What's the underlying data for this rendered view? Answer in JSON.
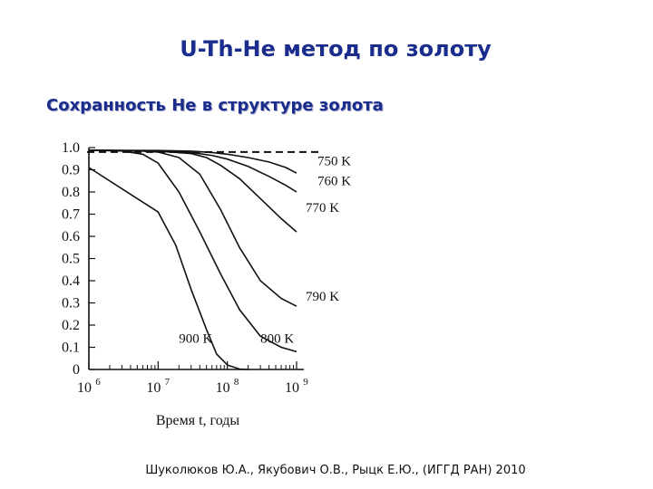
{
  "title": "U-Th-He метод по золоту",
  "subtitle": "Сохранность He в структуре золота",
  "footer": "Шуколюков Ю.А., Якубович О.В., Рыцк Е.Ю., (ИГГД РАН) 2010",
  "chart_data": {
    "type": "line",
    "xlabel": "Время t, годы",
    "ylabel": "",
    "x_scale": "log",
    "xlim": [
      1000000,
      1000000000
    ],
    "ylim": [
      0,
      1.0
    ],
    "x_ticks": [
      {
        "value": 1000000,
        "base": "10",
        "exp": "6"
      },
      {
        "value": 10000000,
        "base": "10",
        "exp": "7"
      },
      {
        "value": 100000000,
        "base": "10",
        "exp": "8"
      },
      {
        "value": 1000000000,
        "base": "10",
        "exp": "9"
      }
    ],
    "y_ticks": [
      "0",
      "0.1",
      "0.2",
      "0.3",
      "0.4",
      "0.5",
      "0.6",
      "0.7",
      "0.8",
      "0.9",
      "1.0"
    ],
    "y_tick_values": [
      0,
      0.1,
      0.2,
      0.3,
      0.4,
      0.5,
      0.6,
      0.7,
      0.8,
      0.9,
      1.0
    ],
    "reference_line": {
      "style": "dashed",
      "y": 0.98
    },
    "series": [
      {
        "name": "750 K",
        "label_at": [
          2000000000,
          0.92
        ],
        "points": [
          [
            1000000,
            0.988
          ],
          [
            10000000,
            0.987
          ],
          [
            30000000,
            0.984
          ],
          [
            60000000,
            0.978
          ],
          [
            100000000,
            0.97
          ],
          [
            200000000,
            0.955
          ],
          [
            400000000,
            0.935
          ],
          [
            700000000,
            0.91
          ],
          [
            1000000000,
            0.885
          ]
        ]
      },
      {
        "name": "760 K",
        "label_at": [
          2000000000,
          0.83
        ],
        "points": [
          [
            1000000,
            0.988
          ],
          [
            10000000,
            0.985
          ],
          [
            30000000,
            0.978
          ],
          [
            60000000,
            0.965
          ],
          [
            100000000,
            0.948
          ],
          [
            200000000,
            0.915
          ],
          [
            400000000,
            0.87
          ],
          [
            700000000,
            0.83
          ],
          [
            1000000000,
            0.8
          ]
        ]
      },
      {
        "name": "770 K",
        "label_at": [
          1350000000,
          0.71
        ],
        "points": [
          [
            1000000,
            0.988
          ],
          [
            10000000,
            0.984
          ],
          [
            30000000,
            0.973
          ],
          [
            50000000,
            0.955
          ],
          [
            80000000,
            0.92
          ],
          [
            150000000,
            0.86
          ],
          [
            300000000,
            0.77
          ],
          [
            600000000,
            0.68
          ],
          [
            1000000000,
            0.62
          ]
        ]
      },
      {
        "name": "790 K",
        "label_at": [
          1350000000,
          0.31
        ],
        "points": [
          [
            1000000,
            0.988
          ],
          [
            5000000,
            0.986
          ],
          [
            10000000,
            0.98
          ],
          [
            20000000,
            0.955
          ],
          [
            40000000,
            0.88
          ],
          [
            80000000,
            0.72
          ],
          [
            150000000,
            0.55
          ],
          [
            300000000,
            0.4
          ],
          [
            600000000,
            0.32
          ],
          [
            1000000000,
            0.285
          ]
        ]
      },
      {
        "name": "800 K",
        "label_at": [
          300000000,
          0.12
        ],
        "points": [
          [
            1000000,
            0.988
          ],
          [
            3000000,
            0.985
          ],
          [
            6000000,
            0.97
          ],
          [
            10000000,
            0.93
          ],
          [
            20000000,
            0.8
          ],
          [
            40000000,
            0.62
          ],
          [
            80000000,
            0.43
          ],
          [
            150000000,
            0.27
          ],
          [
            300000000,
            0.15
          ],
          [
            600000000,
            0.1
          ],
          [
            1000000000,
            0.08
          ]
        ]
      },
      {
        "name": "900 K",
        "label_at": [
          20000000,
          0.12
        ],
        "points": [
          [
            1000000,
            0.91
          ],
          [
            10000000,
            0.71
          ],
          [
            18000000,
            0.56
          ],
          [
            30000000,
            0.36
          ],
          [
            50000000,
            0.18
          ],
          [
            70000000,
            0.07
          ],
          [
            100000000,
            0.02
          ],
          [
            150000000,
            0.002
          ],
          [
            200000000,
            0.0
          ]
        ]
      }
    ]
  }
}
